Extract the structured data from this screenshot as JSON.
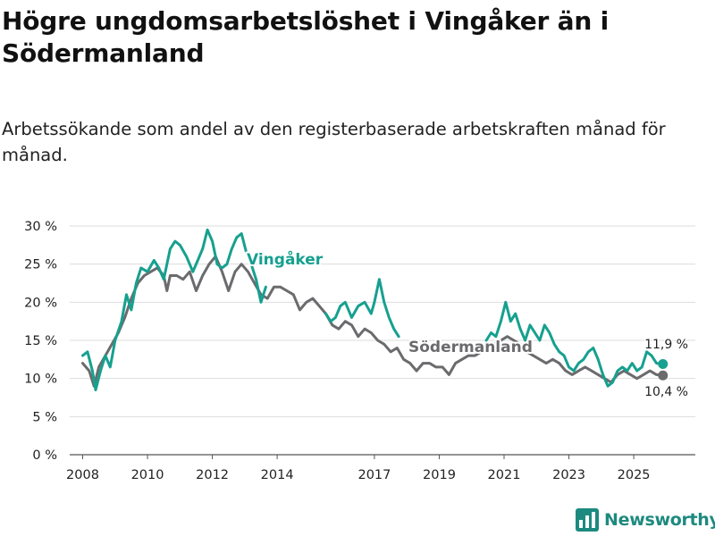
{
  "header": {
    "title": "Högre ungdomsarbetslöshet i Vingåker än i Södermanland",
    "subtitle": "Arbetssökande som andel av den registerbaserade arbetskraften månad för månad."
  },
  "brand": {
    "name": "Newsworthy",
    "icon": "newsworthy-logo-icon",
    "color": "#1d8a7f"
  },
  "chart_data": {
    "type": "line",
    "title": "Högre ungdomsarbetslöshet i Vingåker än i Södermanland",
    "xlabel": "",
    "ylabel": "",
    "ylim": [
      0,
      30
    ],
    "xlim": [
      2007.6,
      2026.9
    ],
    "grid": true,
    "y_ticks": [
      0,
      5,
      10,
      15,
      20,
      25,
      30
    ],
    "y_tick_labels": [
      "0 %",
      "5 %",
      "10 %",
      "15 %",
      "20 %",
      "25 %",
      "30 %"
    ],
    "x_ticks": [
      2008,
      2010,
      2012,
      2014,
      2017,
      2019,
      2021,
      2023,
      2025
    ],
    "x_tick_labels": [
      "2008",
      "2010",
      "2012",
      "2014",
      "2017",
      "2019",
      "2021",
      "2023",
      "2025"
    ],
    "series": [
      {
        "name": "Södermanland",
        "label": "Södermanland",
        "color": "#6b6b6e",
        "end_label": "10,4 %",
        "points": [
          [
            2008.0,
            12.0
          ],
          [
            2008.2,
            11.0
          ],
          [
            2008.35,
            9.0
          ],
          [
            2008.5,
            11.5
          ],
          [
            2008.7,
            13.0
          ],
          [
            2008.9,
            14.5
          ],
          [
            2009.1,
            16.0
          ],
          [
            2009.3,
            18.0
          ],
          [
            2009.5,
            20.5
          ],
          [
            2009.7,
            22.5
          ],
          [
            2009.9,
            23.5
          ],
          [
            2010.1,
            24.0
          ],
          [
            2010.3,
            24.5
          ],
          [
            2010.5,
            23.5
          ],
          [
            2010.6,
            21.5
          ],
          [
            2010.7,
            23.5
          ],
          [
            2010.9,
            23.5
          ],
          [
            2011.1,
            23.0
          ],
          [
            2011.3,
            24.0
          ],
          [
            2011.5,
            21.5
          ],
          [
            2011.7,
            23.5
          ],
          [
            2011.9,
            25.0
          ],
          [
            2012.1,
            26.0
          ],
          [
            2012.3,
            24.0
          ],
          [
            2012.5,
            21.5
          ],
          [
            2012.7,
            24.0
          ],
          [
            2012.9,
            25.0
          ],
          [
            2013.1,
            24.0
          ],
          [
            2013.3,
            22.5
          ],
          [
            2013.5,
            21.0
          ],
          [
            2013.7,
            20.5
          ],
          [
            2013.9,
            22.0
          ],
          [
            2014.1,
            22.0
          ],
          [
            2014.3,
            21.5
          ],
          [
            2014.5,
            21.0
          ],
          [
            2014.7,
            19.0
          ],
          [
            2014.9,
            20.0
          ],
          [
            2015.1,
            20.5
          ],
          [
            2015.3,
            19.5
          ],
          [
            2015.5,
            18.5
          ],
          [
            2015.7,
            17.0
          ],
          [
            2015.9,
            16.5
          ],
          [
            2016.1,
            17.5
          ],
          [
            2016.3,
            17.0
          ],
          [
            2016.5,
            15.5
          ],
          [
            2016.7,
            16.5
          ],
          [
            2016.9,
            16.0
          ],
          [
            2017.1,
            15.0
          ],
          [
            2017.3,
            14.5
          ],
          [
            2017.5,
            13.5
          ],
          [
            2017.7,
            14.0
          ],
          [
            2017.9,
            12.5
          ],
          [
            2018.1,
            12.0
          ],
          [
            2018.3,
            11.0
          ],
          [
            2018.5,
            12.0
          ],
          [
            2018.7,
            12.0
          ],
          [
            2018.9,
            11.5
          ],
          [
            2019.1,
            11.5
          ],
          [
            2019.3,
            10.5
          ],
          [
            2019.5,
            12.0
          ],
          [
            2019.7,
            12.5
          ],
          [
            2019.9,
            13.0
          ],
          [
            2020.1,
            13.0
          ],
          [
            2020.3,
            13.5
          ],
          [
            2020.5,
            14.0
          ],
          [
            2020.7,
            14.5
          ],
          [
            2020.9,
            15.0
          ],
          [
            2021.1,
            15.5
          ],
          [
            2021.3,
            15.0
          ],
          [
            2021.5,
            14.5
          ],
          [
            2021.7,
            13.5
          ],
          [
            2021.9,
            13.0
          ],
          [
            2022.1,
            12.5
          ],
          [
            2022.3,
            12.0
          ],
          [
            2022.5,
            12.5
          ],
          [
            2022.7,
            12.0
          ],
          [
            2022.9,
            11.0
          ],
          [
            2023.1,
            10.5
          ],
          [
            2023.3,
            11.0
          ],
          [
            2023.5,
            11.5
          ],
          [
            2023.7,
            11.0
          ],
          [
            2023.9,
            10.5
          ],
          [
            2024.1,
            10.0
          ],
          [
            2024.3,
            9.5
          ],
          [
            2024.5,
            10.5
          ],
          [
            2024.7,
            11.0
          ],
          [
            2024.9,
            10.5
          ],
          [
            2025.1,
            10.0
          ],
          [
            2025.3,
            10.5
          ],
          [
            2025.5,
            11.0
          ],
          [
            2025.7,
            10.5
          ],
          [
            2025.9,
            10.4
          ]
        ]
      },
      {
        "name": "Vingåker",
        "label": "Vingåker",
        "color": "#16a08f",
        "end_label": "11,9 %",
        "points": [
          [
            2008.0,
            13.0
          ],
          [
            2008.15,
            13.5
          ],
          [
            2008.3,
            11.0
          ],
          [
            2008.4,
            8.5
          ],
          [
            2008.55,
            11.0
          ],
          [
            2008.7,
            13.0
          ],
          [
            2008.85,
            11.5
          ],
          [
            2009.0,
            15.0
          ],
          [
            2009.2,
            17.5
          ],
          [
            2009.35,
            21.0
          ],
          [
            2009.5,
            19.0
          ],
          [
            2009.65,
            22.5
          ],
          [
            2009.8,
            24.5
          ],
          [
            2010.0,
            24.0
          ],
          [
            2010.2,
            25.5
          ],
          [
            2010.35,
            24.5
          ],
          [
            2010.5,
            23.0
          ],
          [
            2010.7,
            27.0
          ],
          [
            2010.85,
            28.0
          ],
          [
            2011.0,
            27.5
          ],
          [
            2011.2,
            26.0
          ],
          [
            2011.4,
            24.0
          ],
          [
            2011.55,
            25.5
          ],
          [
            2011.7,
            27.0
          ],
          [
            2011.85,
            29.5
          ],
          [
            2012.0,
            28.0
          ],
          [
            2012.15,
            25.0
          ],
          [
            2012.3,
            24.5
          ],
          [
            2012.45,
            25.0
          ],
          [
            2012.6,
            27.0
          ],
          [
            2012.75,
            28.5
          ],
          [
            2012.9,
            29.0
          ],
          [
            2013.05,
            26.5
          ],
          [
            2013.2,
            25.0
          ],
          [
            2013.35,
            23.0
          ],
          [
            2013.5,
            20.0
          ],
          [
            2013.65,
            22.0
          ]
        ],
        "points_b": [
          [
            2015.5,
            18.5
          ],
          [
            2015.65,
            17.5
          ],
          [
            2015.8,
            18.0
          ],
          [
            2015.95,
            19.5
          ],
          [
            2016.1,
            20.0
          ],
          [
            2016.3,
            18.0
          ],
          [
            2016.5,
            19.5
          ],
          [
            2016.7,
            20.0
          ],
          [
            2016.9,
            18.5
          ],
          [
            2017.0,
            20.0
          ],
          [
            2017.15,
            23.0
          ],
          [
            2017.3,
            20.0
          ],
          [
            2017.45,
            18.0
          ],
          [
            2017.6,
            16.5
          ],
          [
            2017.75,
            15.5
          ]
        ],
        "points_c": [
          [
            2020.45,
            15.0
          ],
          [
            2020.6,
            16.0
          ],
          [
            2020.75,
            15.5
          ],
          [
            2020.9,
            17.5
          ],
          [
            2021.05,
            20.0
          ],
          [
            2021.2,
            17.5
          ],
          [
            2021.35,
            18.5
          ],
          [
            2021.5,
            16.5
          ],
          [
            2021.65,
            15.0
          ],
          [
            2021.8,
            17.0
          ],
          [
            2021.95,
            16.0
          ],
          [
            2022.1,
            15.0
          ],
          [
            2022.25,
            17.0
          ],
          [
            2022.4,
            16.0
          ],
          [
            2022.55,
            14.5
          ],
          [
            2022.7,
            13.5
          ],
          [
            2022.85,
            13.0
          ],
          [
            2023.0,
            11.5
          ],
          [
            2023.15,
            11.0
          ],
          [
            2023.3,
            12.0
          ],
          [
            2023.45,
            12.5
          ],
          [
            2023.6,
            13.5
          ],
          [
            2023.75,
            14.0
          ],
          [
            2023.9,
            12.5
          ],
          [
            2024.05,
            10.5
          ],
          [
            2024.2,
            9.0
          ],
          [
            2024.35,
            9.5
          ],
          [
            2024.5,
            11.0
          ],
          [
            2024.65,
            11.5
          ],
          [
            2024.8,
            11.0
          ],
          [
            2024.95,
            12.0
          ],
          [
            2025.1,
            11.0
          ],
          [
            2025.25,
            11.5
          ],
          [
            2025.4,
            13.5
          ],
          [
            2025.55,
            13.0
          ],
          [
            2025.7,
            12.0
          ],
          [
            2025.9,
            11.9
          ]
        ]
      }
    ]
  }
}
